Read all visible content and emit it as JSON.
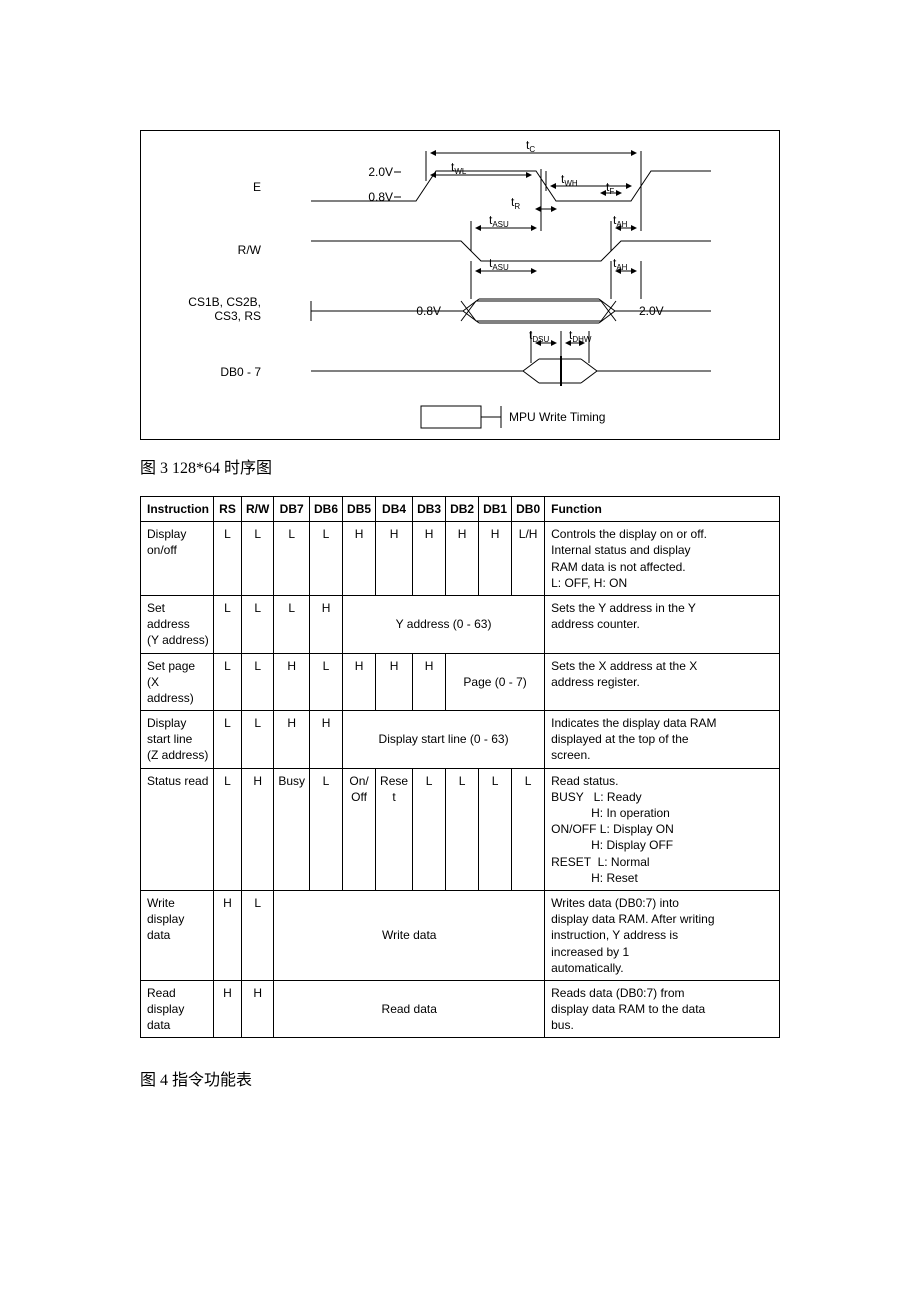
{
  "timing": {
    "signals": [
      "E",
      "R/W",
      "CS1B, CS2B,\nCS3, RS",
      "DB0 - 7"
    ],
    "box_label": "MPU Write Timing",
    "v_hi": "2.0V",
    "v_lo": "0.8V",
    "v_cs_lo": "0.8V",
    "v_cs_hi": "2.0V",
    "t_c": "t",
    "t_c_sub": "C",
    "t_wl": "t",
    "t_wl_sub": "WL",
    "t_wh": "t",
    "t_wh_sub": "WH",
    "t_r": "t",
    "t_r_sub": "R",
    "t_f": "t",
    "t_f_sub": "F",
    "t_asu": "t",
    "t_asu_sub": "ASU",
    "t_ah": "t",
    "t_ah_sub": "AH",
    "t_dsu": "t",
    "t_dsu_sub": "DSU",
    "t_dhw": "t",
    "t_dhw_sub": "DHW"
  },
  "caption_timing": "图 3 128*64 时序图",
  "caption_instr": "图 4 指令功能表",
  "table": {
    "headers": [
      "Instruction",
      "RS",
      "R/W",
      "DB7",
      "DB6",
      "DB5",
      "DB4",
      "DB3",
      "DB2",
      "DB1",
      "DB0",
      "Function"
    ],
    "rows": [
      {
        "instr": "Display\non/off",
        "rs": "L",
        "rw": "L",
        "d": [
          "L",
          "L",
          "H",
          "H",
          "H",
          "H",
          "H",
          "L/H"
        ],
        "func": "Controls the display on or off.\nInternal status and display\nRAM data is not affected.\nL: OFF, H: ON"
      },
      {
        "instr": "Set\naddress\n(Y address)",
        "rs": "L",
        "rw": "L",
        "d": [
          "L",
          "H"
        ],
        "span": {
          "text": "Y address (0 - 63)",
          "cols": 6
        },
        "func": "Sets the Y address in the Y\naddress counter."
      },
      {
        "instr": "Set page\n(X address)",
        "rs": "L",
        "rw": "L",
        "d": [
          "H",
          "L",
          "H",
          "H",
          "H"
        ],
        "span": {
          "text": "Page (0 - 7)",
          "cols": 3
        },
        "func": "Sets the X address at the X\naddress register."
      },
      {
        "instr": "Display\nstart line\n(Z address)",
        "rs": "L",
        "rw": "L",
        "d": [
          "H",
          "H"
        ],
        "span": {
          "text": "Display start line (0 - 63)",
          "cols": 6
        },
        "func": "Indicates the display data RAM\ndisplayed at the top of the\nscreen."
      },
      {
        "instr": "Status read",
        "rs": "L",
        "rw": "H",
        "d": [
          "Busy",
          "L",
          "On/\nOff",
          "Rese\nt",
          "L",
          "L",
          "L",
          "L"
        ],
        "func": "Read status.\nBUSY   L: Ready\n            H: In operation\nON/OFF L: Display ON\n            H: Display OFF\nRESET  L: Normal\n            H: Reset"
      },
      {
        "instr": "Write\ndisplay\ndata",
        "rs": "H",
        "rw": "L",
        "span_full": {
          "text": "Write data",
          "cols": 8
        },
        "func": "Writes data (DB0:7) into\ndisplay data RAM. After writing\ninstruction, Y address is\nincreased by 1\nautomatically."
      },
      {
        "instr": "Read\ndisplay\ndata",
        "rs": "H",
        "rw": "H",
        "span_full": {
          "text": "Read data",
          "cols": 8
        },
        "func": "Reads data (DB0:7) from\ndisplay data RAM to the data\nbus."
      }
    ]
  }
}
